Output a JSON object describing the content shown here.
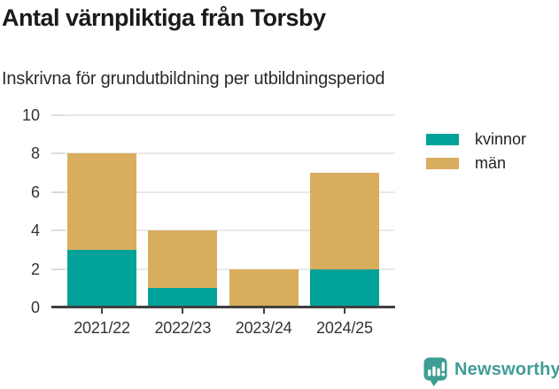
{
  "header": {
    "title": "Antal värnpliktiga från Torsby",
    "subtitle": "Inskrivna för grundutbildning per utbildningsperiod"
  },
  "chart_data": {
    "type": "bar",
    "stacked": true,
    "title": "Antal värnpliktiga från Torsby",
    "subtitle": "Inskrivna för grundutbildning per utbildningsperiod",
    "categories": [
      "2021/22",
      "2022/23",
      "2023/24",
      "2024/25"
    ],
    "series": [
      {
        "name": "kvinnor",
        "color": "#00A29A",
        "values": [
          3,
          1,
          0,
          2
        ]
      },
      {
        "name": "män",
        "color": "#D9AD5E",
        "values": [
          5,
          3,
          2,
          5
        ]
      }
    ],
    "totals": [
      8,
      4,
      2,
      7
    ],
    "xlabel": "",
    "ylabel": "",
    "ylim": [
      0,
      10
    ],
    "yticks": [
      0,
      2,
      4,
      6,
      8,
      10
    ],
    "grid": true,
    "legend_position": "right-top"
  },
  "legend": {
    "items": [
      {
        "label": "kvinnor",
        "color": "#00A29A"
      },
      {
        "label": "män",
        "color": "#D9AD5E"
      }
    ]
  },
  "footer": {
    "brand": "Newsworthy",
    "brand_color": "#3F9D96",
    "logo_icon": "bar-chart-speech-bubble-icon"
  }
}
